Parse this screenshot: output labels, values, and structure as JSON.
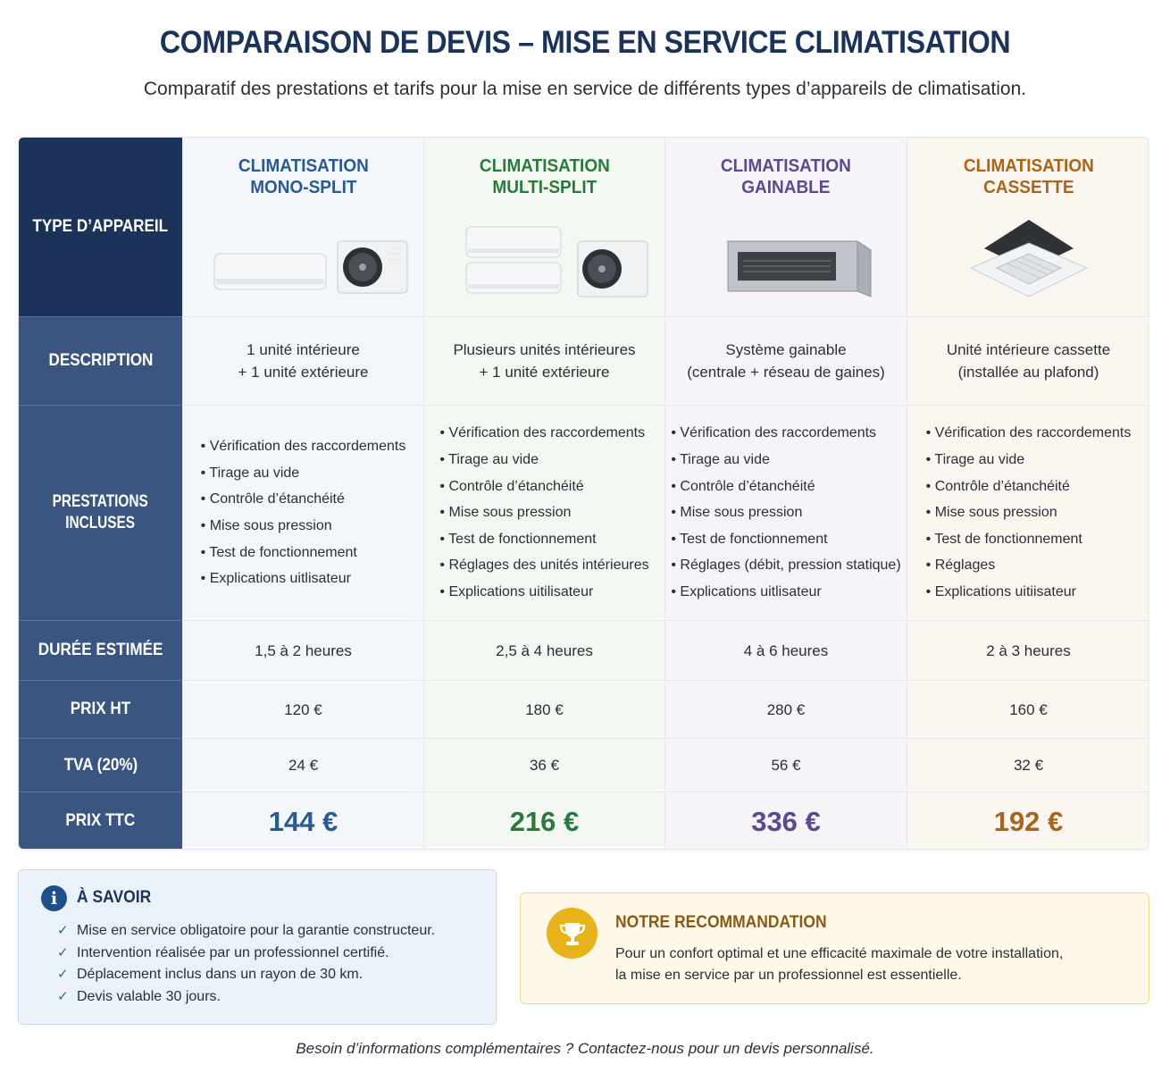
{
  "header": {
    "title": "COMPARAISON DE DEVIS – MISE EN SERVICE CLIMATISATION",
    "subtitle": "Comparatif des prestations et tarifs pour la mise en service de différents types d’appareils de climatisation."
  },
  "row_labels": {
    "type": "TYPE D’APPAREIL",
    "description": "DESCRIPTION",
    "prestations_line1": "PRESTATIONS",
    "prestations_line2": "INCLUSES",
    "duree": "DURÉE ESTIMÉE",
    "prix_ht": "PRIX HT",
    "tva": "TVA (20%)",
    "prix_ttc": "PRIX TTC"
  },
  "columns": [
    {
      "title_line1": "CLIMATISATION",
      "title_line2": "MONO-SPLIT",
      "accent": "#2a5a94",
      "description_line1": "1 unité intérieure",
      "description_line2": "+ 1 unité extérieure",
      "prestations": [
        "Vérification des raccordements",
        "Tirage au vide",
        "Contrôle d’étanchéité",
        "Mise sous pression",
        "Test de fonctionnement",
        "Explications uitlisateur"
      ],
      "duree": "1,5 à 2 heures",
      "prix_ht": "120 €",
      "tva": "24 €",
      "prix_ttc": "144 €"
    },
    {
      "title_line1": "CLIMATISATION",
      "title_line2": "MULTI-SPLIT",
      "accent": "#2a7a3b",
      "description_line1": "Plusieurs unités intérieures",
      "description_line2": "+ 1 unité extérieure",
      "prestations": [
        "Vérification des raccordements",
        "Tirage au vide",
        "Contrôle d’étanchéité",
        "Mise sous pression",
        "Test de fonctionnement",
        "Réglages des unités intérieures",
        "Explications uitilisateur"
      ],
      "duree": "2,5 à 4 heures",
      "prix_ht": "180 €",
      "tva": "36 €",
      "prix_ttc": "216 €"
    },
    {
      "title_line1": "CLIMATISATION",
      "title_line2": "GAINABLE",
      "accent": "#5b4a8f",
      "description_line1": "Système gainable",
      "description_line2": "(centrale + réseau de gaines)",
      "prestations": [
        "Vérification des raccordements",
        "Tirage au vide",
        "Contrôle d’étanchéité",
        "Mise sous pression",
        "Test de fonctionnement",
        "Réglages (débit, pression statique)",
        "Explications uitlisateur"
      ],
      "duree": "4 à 6 heures",
      "prix_ht": "280 €",
      "tva": "56 €",
      "prix_ttc": "336 €"
    },
    {
      "title_line1": "CLIMATISATION",
      "title_line2": "CASSETTE",
      "accent": "#a8651c",
      "description_line1": "Unité intérieure cassette",
      "description_line2": "(installée au plafond)",
      "prestations": [
        "Vérification des raccordements",
        "Tirage au vide",
        "Contrôle d’étanchéité",
        "Mise sous pression",
        "Test de fonctionnement",
        "Réglages",
        "Explications uitiisateur"
      ],
      "duree": "2 à 3 heures",
      "prix_ht": "160 €",
      "tva": "32 €",
      "prix_ttc": "192 €"
    }
  ],
  "info": {
    "icon": "info-icon",
    "title": "À SAVOIR",
    "items": [
      "Mise en service obligatoire pour la garantie constructeur.",
      "Intervention réalisée par un professionnel certifié.",
      "Déplacement inclus dans un rayon de 30 km.",
      "Devis valable 30 jours."
    ]
  },
  "recommendation": {
    "icon": "trophy-icon",
    "title": "NOTRE RECOMMANDATION",
    "text_line1": "Pour un confort optimal et une efficacité maximale de votre installation,",
    "text_line2": "la mise en service par un professionnel est essentielle."
  },
  "footer": "Besoin d’informations complémentaires ? Contactez-nous pour un devis personnalisé."
}
